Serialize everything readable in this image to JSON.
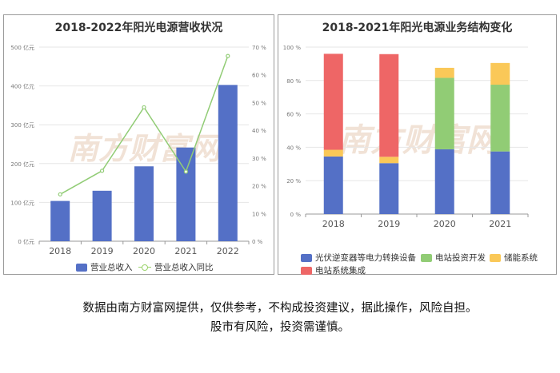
{
  "colors": {
    "revenue_bar": "#5470c6",
    "yoy_line": "#91cc75",
    "inverter": "#5470c6",
    "station_dev": "#91cc75",
    "storage": "#fac858",
    "station_integration": "#ee6666"
  },
  "watermark": "南方财富网",
  "chart_data": [
    {
      "type": "bar+line",
      "title": "2018-2022年阳光电源营收状况",
      "categories": [
        "2018",
        "2019",
        "2020",
        "2021",
        "2022"
      ],
      "y_left": {
        "ylim": [
          0,
          500
        ],
        "ticks": [
          "0 亿元",
          "100 亿元",
          "200 亿元",
          "300 亿元",
          "400 亿元",
          "500 亿元"
        ]
      },
      "y_right": {
        "ylim": [
          0,
          70
        ],
        "ticks": [
          "0 %",
          "10 %",
          "20 %",
          "30 %",
          "40 %",
          "50 %",
          "60 %",
          "70 %"
        ]
      },
      "series": [
        {
          "name": "营业总收入",
          "type": "bar",
          "axis": "left",
          "values": [
            103.7,
            130.0,
            192.9,
            241.4,
            402.6
          ]
        },
        {
          "name": "营业总收入同比",
          "type": "line",
          "axis": "right",
          "values": [
            16.9,
            25.4,
            48.3,
            25.1,
            66.8
          ]
        }
      ],
      "legend_position": "bottom",
      "grid": true
    },
    {
      "type": "stacked_bar",
      "title": "2018-2021年阳光电源业务结构变化",
      "categories": [
        "2018",
        "2019",
        "2020",
        "2021"
      ],
      "ylim": [
        0,
        100
      ],
      "ticks": [
        "0 %",
        "20 %",
        "40 %",
        "60 %",
        "80 %",
        "100 %"
      ],
      "series": [
        {
          "name": "光伏逆变器等电力转换设备",
          "values": [
            34.5,
            30.5,
            38.8,
            37.5
          ]
        },
        {
          "name": "电站投资开发",
          "values": [
            0,
            0,
            42.8,
            40.0
          ]
        },
        {
          "name": "储能系统",
          "values": [
            4.0,
            3.8,
            6.0,
            13.0
          ]
        },
        {
          "name": "电站系统集成",
          "values": [
            57.5,
            61.5,
            0,
            0
          ]
        }
      ],
      "legend_position": "bottom",
      "grid": true
    }
  ],
  "disclaimer": {
    "line1": "数据由南方财富网提供，仅供参考，不构成投资建议，据此操作，风险自担。",
    "line2": "股市有风险，投资需谨慎。"
  }
}
